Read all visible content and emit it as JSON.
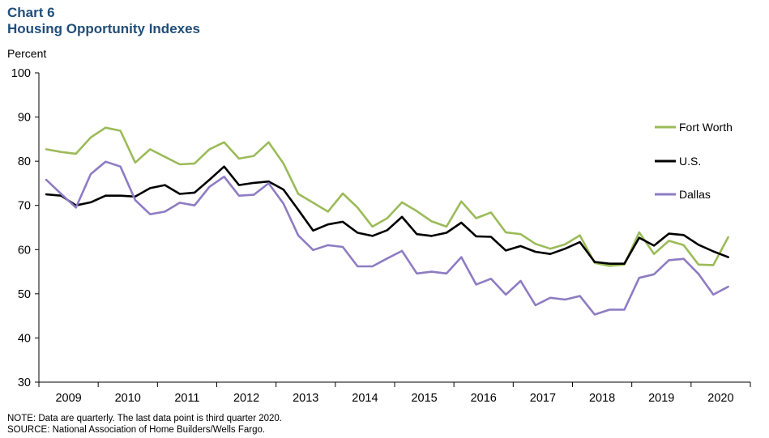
{
  "header": {
    "chart_label": "Chart 6",
    "title": "Housing Opportunity Indexes"
  },
  "y_unit": "Percent",
  "notes": {
    "note": "NOTE: Data are quarterly. The last data point is third quarter 2020.",
    "source": "SOURCE: National Association of Home Builders/Wells Fargo."
  },
  "colors": {
    "fort_worth": "#9bbb59",
    "us": "#000000",
    "dallas": "#8e7cc3"
  },
  "chart_data": {
    "type": "line",
    "title": "Housing Opportunity Indexes",
    "ylabel": "Percent",
    "xlabel": "",
    "ylim": [
      30,
      100
    ],
    "yticks": [
      30,
      40,
      50,
      60,
      70,
      80,
      90,
      100
    ],
    "year_labels": [
      "2009",
      "2010",
      "2011",
      "2012",
      "2013",
      "2014",
      "2015",
      "2016",
      "2017",
      "2018",
      "2019",
      "2020"
    ],
    "x_start": "2009 Q1",
    "x_end": "2020 Q3",
    "frequency": "quarterly",
    "grid": false,
    "legend_position": "right",
    "series": [
      {
        "name": "Fort Worth",
        "color": "#9bbb59",
        "values": [
          82.7,
          82.1,
          81.7,
          85.4,
          87.6,
          86.9,
          79.7,
          82.7,
          81.0,
          79.3,
          79.5,
          82.7,
          84.3,
          80.6,
          81.2,
          84.3,
          79.5,
          72.6,
          70.6,
          68.6,
          72.7,
          69.5,
          65.2,
          67.1,
          70.7,
          68.7,
          66.4,
          65.2,
          70.9,
          67.1,
          68.4,
          63.9,
          63.5,
          61.3,
          60.2,
          61.2,
          63.2,
          57.0,
          56.3,
          56.6,
          63.9,
          59.0,
          62.0,
          61.0,
          56.6,
          56.5,
          62.8
        ]
      },
      {
        "name": "U.S.",
        "color": "#000000",
        "values": [
          72.5,
          72.2,
          70.0,
          70.7,
          72.2,
          72.2,
          72.0,
          73.9,
          74.6,
          72.6,
          72.9,
          75.8,
          78.8,
          74.6,
          75.1,
          75.4,
          73.6,
          69.0,
          64.3,
          65.7,
          66.3,
          63.8,
          63.1,
          64.4,
          67.4,
          63.5,
          63.1,
          63.8,
          66.1,
          63.0,
          62.9,
          59.8,
          60.8,
          59.5,
          59.0,
          60.2,
          61.7,
          57.2,
          56.8,
          56.8,
          62.7,
          60.9,
          63.6,
          63.3,
          61.1,
          59.6,
          58.3
        ]
      },
      {
        "name": "Dallas",
        "color": "#8e7cc3",
        "values": [
          75.8,
          72.6,
          69.5,
          77.1,
          79.9,
          78.8,
          71.2,
          68.0,
          68.6,
          70.6,
          70.0,
          74.2,
          76.5,
          72.2,
          72.4,
          75.0,
          70.4,
          63.2,
          59.9,
          61.0,
          60.6,
          56.2,
          56.2,
          58.0,
          59.7,
          54.6,
          55.0,
          54.6,
          58.3,
          52.1,
          53.4,
          49.8,
          52.9,
          47.4,
          49.1,
          48.7,
          49.5,
          45.3,
          46.4,
          46.4,
          53.6,
          54.4,
          57.6,
          57.9,
          54.5,
          49.8,
          51.6
        ]
      }
    ]
  }
}
